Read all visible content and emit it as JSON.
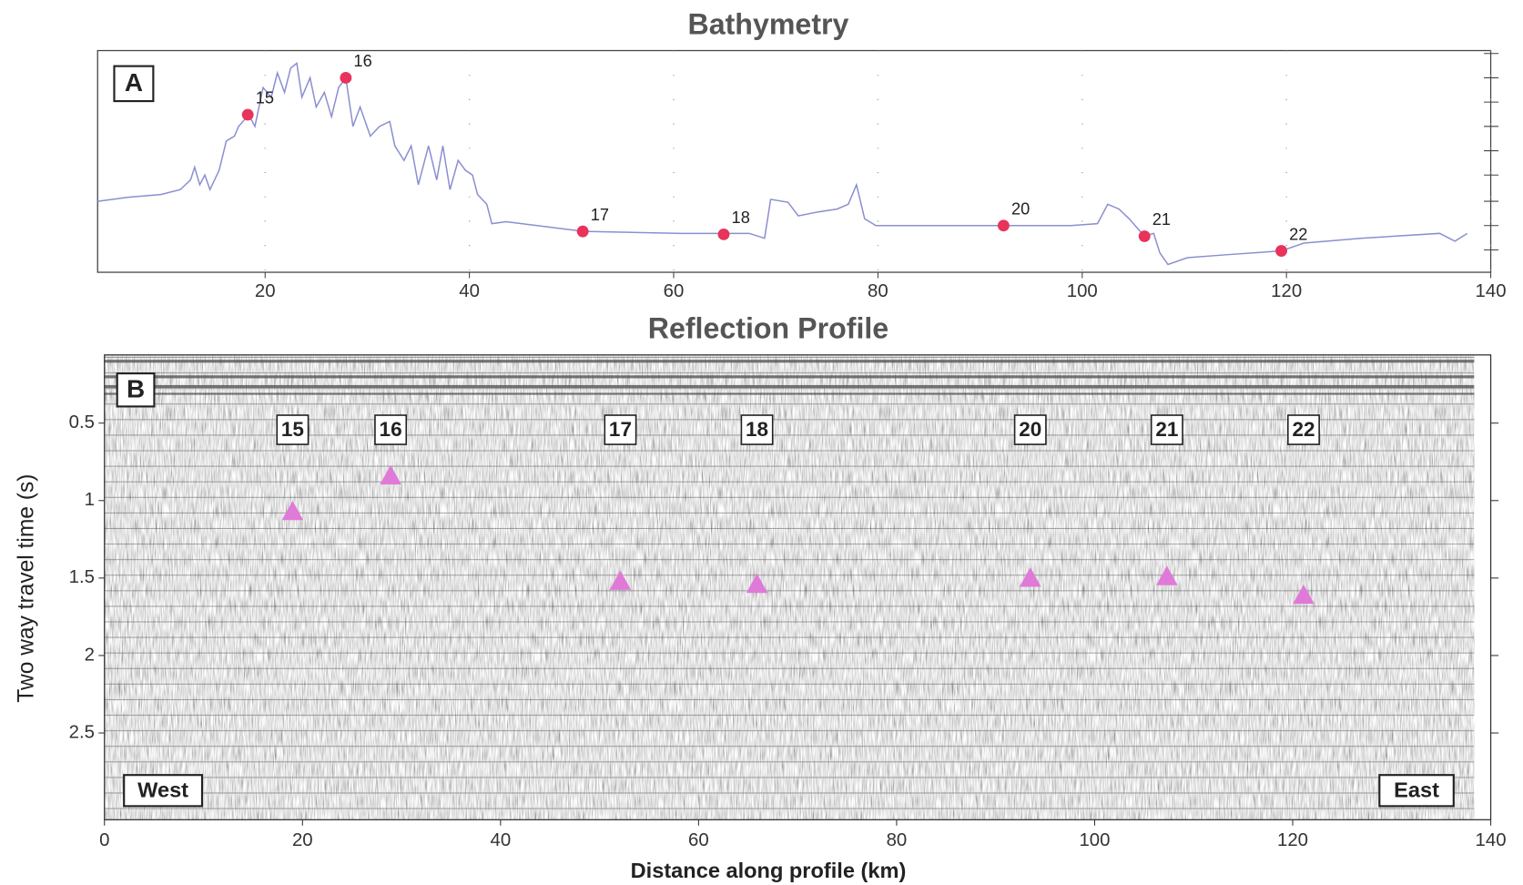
{
  "chart_data": [
    {
      "type": "line",
      "title": "Bathymetry",
      "panel": "A",
      "x": [
        3.6,
        6.5,
        9.8,
        11.7,
        12.7,
        13.1,
        13.6,
        14.1,
        14.6,
        15.5,
        16.2,
        17.0,
        17.4,
        18.4,
        19.0,
        19.8,
        20.6,
        21.2,
        21.9,
        22.5,
        23.1,
        23.6,
        24.4,
        25.0,
        25.8,
        26.5,
        27.2,
        27.9,
        28.6,
        29.3,
        30.3,
        31.2,
        32.2,
        32.7,
        33.6,
        34.3,
        35.0,
        36.0,
        36.8,
        37.4,
        38.1,
        38.9,
        39.6,
        40.3,
        40.8,
        41.7,
        42.2,
        43.6,
        51.2,
        60.8,
        65.0,
        67.4,
        68.9,
        69.5,
        71.2,
        72.2,
        74.1,
        76.0,
        77.1,
        77.9,
        78.7,
        79.8,
        89.3,
        92.2,
        98.9,
        101.5,
        102.5,
        103.6,
        104.6,
        106.1,
        107.0,
        107.6,
        108.4,
        110.3,
        114.1,
        119.5,
        121.7,
        127.4,
        135.0,
        136.5,
        137.7
      ],
      "values": [
        73,
        77,
        80,
        85,
        95,
        108,
        90,
        100,
        85,
        105,
        135,
        140,
        150,
        162,
        150,
        190,
        180,
        205,
        185,
        210,
        215,
        180,
        200,
        170,
        185,
        160,
        190,
        200,
        150,
        170,
        140,
        150,
        155,
        130,
        115,
        130,
        90,
        130,
        95,
        130,
        85,
        115,
        105,
        100,
        80,
        70,
        50,
        52,
        42,
        40,
        40,
        40,
        35,
        75,
        72,
        58,
        62,
        65,
        70,
        90,
        55,
        48,
        48,
        48,
        48,
        50,
        70,
        65,
        55,
        37,
        40,
        20,
        8,
        15,
        18,
        22,
        30,
        35,
        40,
        32,
        40
      ],
      "color": "#8a8fd0",
      "points": [
        {
          "label": "15",
          "x": 18.3,
          "y": 162
        },
        {
          "label": "16",
          "x": 27.9,
          "y": 200
        },
        {
          "label": "17",
          "x": 51.1,
          "y": 42
        },
        {
          "label": "18",
          "x": 64.9,
          "y": 39
        },
        {
          "label": "20",
          "x": 92.3,
          "y": 48
        },
        {
          "label": "21",
          "x": 106.1,
          "y": 37
        },
        {
          "label": "22",
          "x": 119.5,
          "y": 22
        }
      ],
      "point_color": "#e8335a",
      "xlim": [
        3.6,
        140
      ],
      "xticks": [
        20,
        40,
        60,
        80,
        100,
        120,
        140
      ],
      "ylim": [
        0,
        228
      ],
      "grid": true
    },
    {
      "type": "seismic",
      "title": "Reflection Profile",
      "panel": "B",
      "xlabel": "Distance along profile (km)",
      "ylabel": "Two way travel time (s)",
      "xlim": [
        0,
        140
      ],
      "xticks": [
        0,
        20,
        40,
        60,
        80,
        100,
        120,
        140
      ],
      "ylim": [
        0.06,
        3.06
      ],
      "yticks": [
        0.5,
        1,
        1.5,
        2,
        2.5
      ],
      "y_inverted": true,
      "points": [
        {
          "label": "15",
          "x": 19.0,
          "y": 1.07
        },
        {
          "label": "16",
          "x": 28.9,
          "y": 0.84
        },
        {
          "label": "17",
          "x": 52.1,
          "y": 1.52
        },
        {
          "label": "18",
          "x": 65.9,
          "y": 1.54
        },
        {
          "label": "20",
          "x": 93.5,
          "y": 1.5
        },
        {
          "label": "21",
          "x": 107.3,
          "y": 1.49
        },
        {
          "label": "22",
          "x": 121.1,
          "y": 1.61
        }
      ],
      "point_color": "#e07ad8",
      "annotations": [
        "West",
        "East"
      ]
    }
  ]
}
